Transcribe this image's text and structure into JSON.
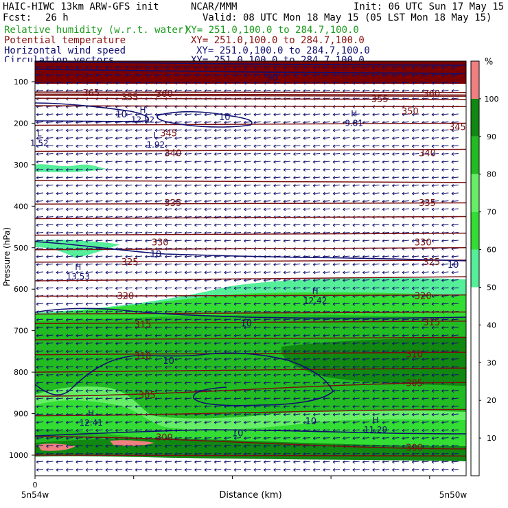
{
  "header": {
    "model": "HAIC-HIWC 13km ARW-GFS init",
    "org": "NCAR/MMM",
    "init": "Init: 06 UTC Sun 17 May 15",
    "fcst_label": "Fcst:",
    "fcst_value": "26 h",
    "valid": "Valid: 08 UTC Mon 18 May 15 (05 LST Mon 18 May 15)",
    "fields": [
      {
        "name": "Relative humidity (w.r.t. water)",
        "xy": "XY= 251.0,100.0 to 284.7,100.0",
        "color": "#1a9b1a"
      },
      {
        "name": "Potential temperature",
        "xy": "XY= 251.0,100.0 to 284.7,100.0",
        "color": "#8b1010"
      },
      {
        "name": "Horizontal wind speed",
        "xy": "XY= 251.0,100.0 to 284.7,100.0",
        "color": "#101070"
      },
      {
        "name": "Circulation vectors",
        "xy": "XY= 251.0,100.0 to 284.7,100.0",
        "color": "#101070"
      }
    ]
  },
  "chart_data": {
    "type": "heatmap",
    "ylabel": "Pressure (hPa)",
    "xlabel": "Distance (km)",
    "y_ticks": [
      100,
      200,
      300,
      400,
      500,
      600,
      700,
      800,
      900,
      1000
    ],
    "x_tick_value": "0",
    "x_left_label": "5n54w",
    "x_right_label": "5n50w",
    "colorbar_unit": "%",
    "colorbar_levels": [
      {
        "value": 10,
        "color": "#ffffff"
      },
      {
        "value": 20,
        "color": "#ffffff"
      },
      {
        "value": 30,
        "color": "#ffffff"
      },
      {
        "value": 40,
        "color": "#ffffff"
      },
      {
        "value": 50,
        "color": "#ffffff"
      },
      {
        "value": 60,
        "color": "#55ee99"
      },
      {
        "value": 70,
        "color": "#33dd33"
      },
      {
        "value": 80,
        "color": "#66ee66"
      },
      {
        "value": 90,
        "color": "#22bb22"
      },
      {
        "value": 100,
        "color": "#118811"
      }
    ],
    "colorbar_top_color": "#f08080",
    "theta_labels": [
      {
        "p": 128,
        "text": "365",
        "d": 0.13
      },
      {
        "p": 138,
        "text": "355",
        "d": 0.22
      },
      {
        "p": 130,
        "text": "360",
        "d": 0.3
      },
      {
        "p": 130,
        "text": "360",
        "d": 0.92
      },
      {
        "p": 142,
        "text": "355",
        "d": 0.8
      },
      {
        "p": 172,
        "text": "350",
        "d": 0.87
      },
      {
        "p": 210,
        "text": "345",
        "d": 0.98
      },
      {
        "p": 225,
        "text": "345",
        "d": 0.31
      },
      {
        "p": 273,
        "text": "340",
        "d": 0.32
      },
      {
        "p": 273,
        "text": "340",
        "d": 0.91
      },
      {
        "p": 393,
        "text": "335",
        "d": 0.32
      },
      {
        "p": 393,
        "text": "335",
        "d": 0.91
      },
      {
        "p": 488,
        "text": "330",
        "d": 0.29
      },
      {
        "p": 488,
        "text": "330",
        "d": 0.9
      },
      {
        "p": 535,
        "text": "325",
        "d": 0.22
      },
      {
        "p": 535,
        "text": "325",
        "d": 0.92
      },
      {
        "p": 617,
        "text": "320",
        "d": 0.21
      },
      {
        "p": 617,
        "text": "320",
        "d": 0.9
      },
      {
        "p": 686,
        "text": "315",
        "d": 0.25
      },
      {
        "p": 681,
        "text": "315",
        "d": 0.92
      },
      {
        "p": 762,
        "text": "310",
        "d": 0.25
      },
      {
        "p": 758,
        "text": "310",
        "d": 0.88
      },
      {
        "p": 856,
        "text": "305",
        "d": 0.26
      },
      {
        "p": 827,
        "text": "305",
        "d": 0.88
      },
      {
        "p": 958,
        "text": "300",
        "d": 0.3
      },
      {
        "p": 983,
        "text": "300",
        "d": 0.88
      }
    ],
    "wind_labels": [
      {
        "p": 91,
        "text": "90",
        "d": 0.55
      },
      {
        "p": 179,
        "text": "10",
        "d": 0.2
      },
      {
        "p": 186,
        "text": "10",
        "d": 0.44
      },
      {
        "p": 516,
        "text": "10",
        "d": 0.28
      },
      {
        "p": 542,
        "text": "10",
        "d": 0.97
      },
      {
        "p": 683,
        "text": "10",
        "d": 0.49
      },
      {
        "p": 773,
        "text": "10",
        "d": 0.31
      },
      {
        "p": 919,
        "text": "10",
        "d": 0.64
      },
      {
        "p": 948,
        "text": "10",
        "d": 0.47
      }
    ],
    "extrema": [
      {
        "mark": "H",
        "value": "12.82",
        "p": 182,
        "d": 0.25
      },
      {
        "mark": "H",
        "value": "9.81",
        "p": 190,
        "d": 0.74
      },
      {
        "mark": "L",
        "value": "1.52",
        "p": 238,
        "d": 0.01
      },
      {
        "mark": "L",
        "value": "1.92",
        "p": 242,
        "d": 0.28
      },
      {
        "mark": "H",
        "value": "13.53",
        "p": 560,
        "d": 0.1
      },
      {
        "mark": "H",
        "value": "12.42",
        "p": 618,
        "d": 0.65
      },
      {
        "mark": "H",
        "value": "12.41",
        "p": 912,
        "d": 0.13
      },
      {
        "mark": "H",
        "value": "11.29",
        "p": 929,
        "d": 0.79
      }
    ]
  }
}
